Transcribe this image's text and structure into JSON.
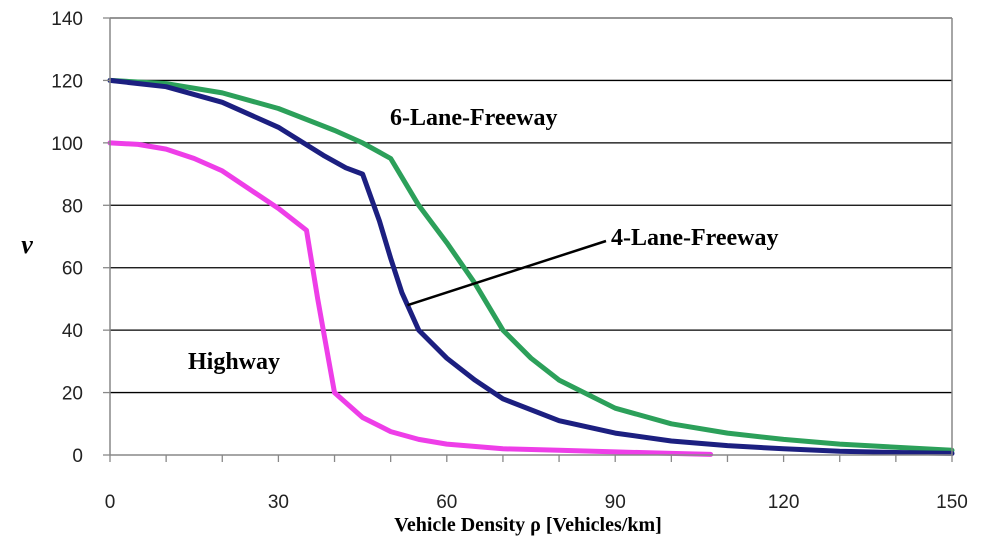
{
  "chart_data": {
    "type": "line",
    "xlabel": "Vehicle Density ρ [Vehicles/km]",
    "ylabel": "v",
    "xlim": [
      0,
      150
    ],
    "ylim": [
      0,
      140
    ],
    "x_ticks": [
      "0",
      "30",
      "60",
      "90",
      "120",
      "150"
    ],
    "y_ticks": [
      "0",
      "20",
      "40",
      "60",
      "80",
      "100",
      "120",
      "140"
    ],
    "grid": "horizontal",
    "legend": "none",
    "series": [
      {
        "name": "6-Lane-Freeway",
        "color": "#2ca05a",
        "points": [
          [
            0,
            120
          ],
          [
            10,
            119
          ],
          [
            20,
            116
          ],
          [
            30,
            111
          ],
          [
            40,
            104
          ],
          [
            45,
            100
          ],
          [
            50,
            95
          ],
          [
            55,
            80
          ],
          [
            60,
            68
          ],
          [
            65,
            55
          ],
          [
            70,
            40
          ],
          [
            75,
            31
          ],
          [
            80,
            24
          ],
          [
            90,
            15
          ],
          [
            100,
            10
          ],
          [
            110,
            7
          ],
          [
            120,
            5
          ],
          [
            130,
            3.5
          ],
          [
            140,
            2.5
          ],
          [
            150,
            1.5
          ]
        ]
      },
      {
        "name": "4-Lane-Freeway",
        "color": "#1c1f80",
        "points": [
          [
            0,
            120
          ],
          [
            10,
            118
          ],
          [
            20,
            113
          ],
          [
            30,
            105
          ],
          [
            38,
            96
          ],
          [
            42,
            92
          ],
          [
            45,
            90
          ],
          [
            48,
            75
          ],
          [
            50,
            63
          ],
          [
            52,
            52
          ],
          [
            55,
            40
          ],
          [
            60,
            31
          ],
          [
            65,
            24
          ],
          [
            70,
            18
          ],
          [
            80,
            11
          ],
          [
            90,
            7
          ],
          [
            100,
            4.5
          ],
          [
            110,
            3
          ],
          [
            120,
            2
          ],
          [
            130,
            1.2
          ],
          [
            140,
            0.8
          ],
          [
            150,
            0.5
          ]
        ]
      },
      {
        "name": "Highway",
        "color": "#ee3ee8",
        "points": [
          [
            0,
            100
          ],
          [
            5,
            99.5
          ],
          [
            10,
            98
          ],
          [
            15,
            95
          ],
          [
            20,
            91
          ],
          [
            25,
            85
          ],
          [
            30,
            79
          ],
          [
            35,
            72
          ],
          [
            37,
            50
          ],
          [
            39,
            30
          ],
          [
            40,
            20
          ],
          [
            45,
            12
          ],
          [
            50,
            7.5
          ],
          [
            55,
            5
          ],
          [
            60,
            3.5
          ],
          [
            70,
            2
          ],
          [
            80,
            1.5
          ],
          [
            90,
            1
          ],
          [
            100,
            0.5
          ],
          [
            107,
            0.2
          ]
        ]
      }
    ],
    "annotations": [
      {
        "text": "6-Lane-Freeway",
        "series": "6-Lane-Freeway"
      },
      {
        "text": "4-Lane-Freeway",
        "series": "4-Lane-Freeway",
        "arrow_to": [
          53,
          48
        ]
      },
      {
        "text": "Highway",
        "series": "Highway"
      }
    ]
  }
}
